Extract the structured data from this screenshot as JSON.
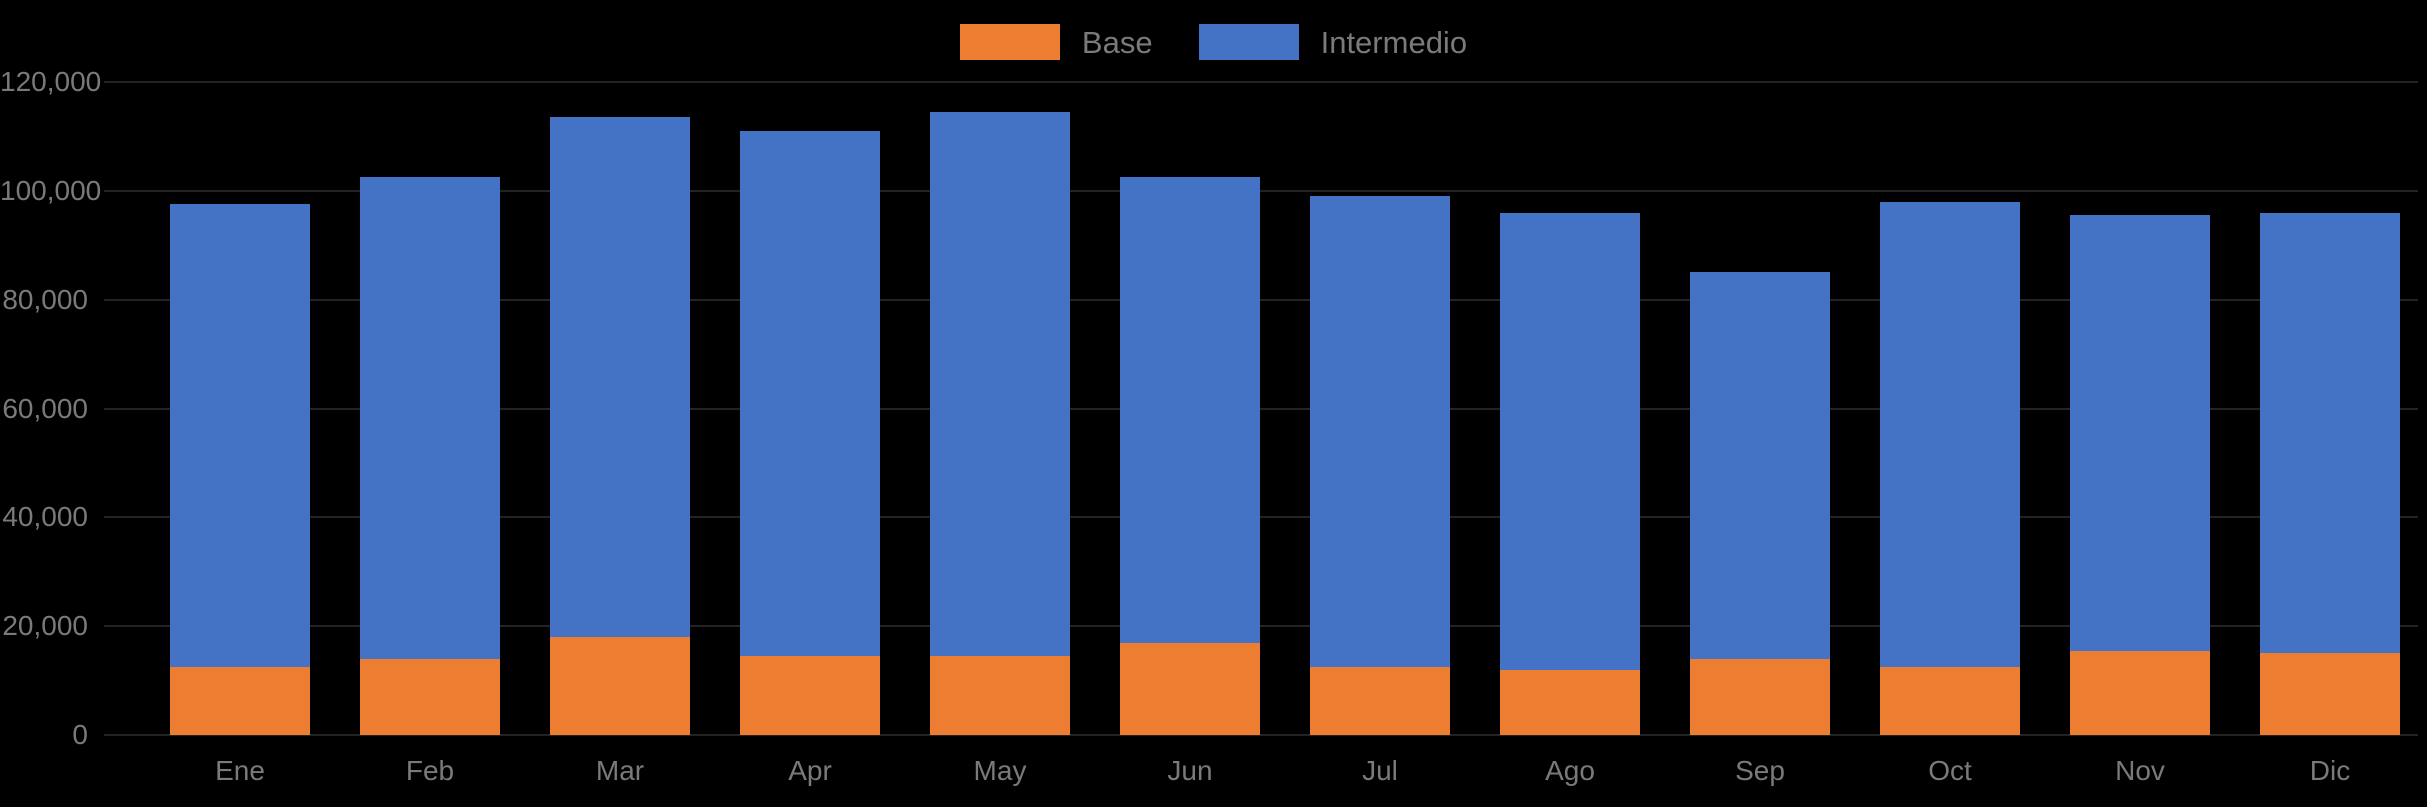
{
  "chart": {
    "background_color": "#000000",
    "text_color": "#7a7a7a",
    "gridline_color": "#232323",
    "legend": [
      {
        "label": "Base",
        "color": "#ED7D31"
      },
      {
        "label": "Intermedio",
        "color": "#4472C4"
      }
    ]
  },
  "chart_data": {
    "type": "bar",
    "stacked": true,
    "title": "",
    "xlabel": "",
    "ylabel": "",
    "categories": [
      "Ene",
      "Feb",
      "Mar",
      "Apr",
      "May",
      "Jun",
      "Jul",
      "Ago",
      "Sep",
      "Oct",
      "Nov",
      "Dic"
    ],
    "series": [
      {
        "name": "Base",
        "color": "#ED7D31",
        "values": [
          12500,
          14000,
          18000,
          14500,
          14500,
          17000,
          12500,
          12000,
          14000,
          12500,
          15500,
          15000
        ]
      },
      {
        "name": "Intermedio",
        "color": "#4472C4",
        "values": [
          85000,
          88500,
          95500,
          96500,
          100000,
          85500,
          86500,
          84000,
          71000,
          85500,
          80000,
          81000
        ]
      }
    ],
    "stack_totals": [
      97500,
      102500,
      113500,
      111000,
      114500,
      102500,
      99000,
      96000,
      85000,
      98000,
      95500,
      96000
    ],
    "ylim": [
      0,
      120000
    ],
    "ytick_step": 20000,
    "ytick_labels": [
      "0",
      "20,000",
      "40,000",
      "60,000",
      "80,000",
      "100,000",
      "120,000"
    ],
    "grid": "horizontal-faint",
    "legend_position": "top-center"
  }
}
